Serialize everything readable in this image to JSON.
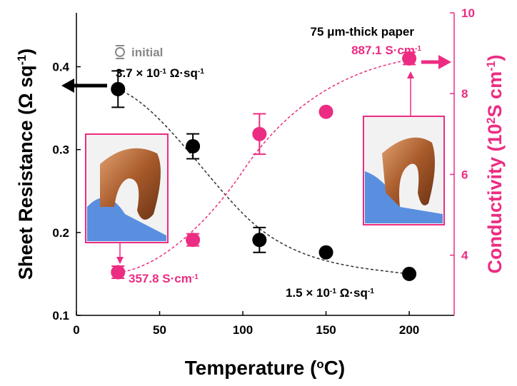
{
  "chart_data": {
    "type": "scatter",
    "x_label": [
      "Temperature (",
      "o",
      "C)"
    ],
    "y_label": [
      "Sheet Resistance (Ω sq",
      "-1",
      ")"
    ],
    "y2_label": [
      "Conductivity (10",
      "2",
      "S cm",
      "-1",
      ")"
    ],
    "xlim": [
      0,
      227
    ],
    "xticks": [
      0,
      50,
      100,
      150,
      200
    ],
    "ylim": [
      0.1,
      0.465
    ],
    "yticks": [
      0.1,
      0.2,
      0.3,
      0.4
    ],
    "y2lim": [
      2.51,
      10
    ],
    "y2ticks": [
      4,
      6,
      8,
      10
    ],
    "legend": {
      "label": "initial",
      "color": "#888888"
    },
    "series": [
      {
        "color": "#000000",
        "x": [
          25,
          70,
          110,
          150,
          200
        ],
        "values": [
          0.373,
          0.304,
          0.191,
          0.176,
          0.15
        ],
        "errors": [
          0.022,
          0.015,
          0.015,
          0.003,
          0.003
        ]
      },
      {
        "color": "#ec2c82",
        "axis": "y2",
        "x": [
          25,
          70,
          110,
          150,
          200
        ],
        "values": [
          3.578,
          4.38,
          7.0,
          7.55,
          8.871
        ],
        "errors": [
          0.15,
          0.15,
          0.5,
          0.05,
          0.15
        ]
      }
    ],
    "annotations": {
      "paper": "75 μm-thick paper",
      "r_initial": [
        "3.7 × 10",
        "-1",
        " Ω·sq",
        "-1"
      ],
      "r_final": [
        "1.5 × 10",
        "-1",
        " Ω·sq",
        "-1"
      ],
      "c_initial": [
        "357.8 S·cm",
        "-1"
      ],
      "c_final": [
        "887.1 S·cm",
        "-1"
      ]
    }
  }
}
